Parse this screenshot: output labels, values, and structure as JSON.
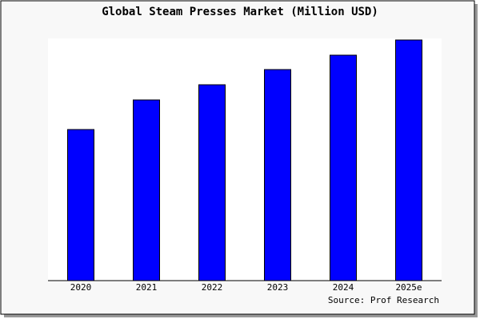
{
  "chart_data": {
    "type": "bar",
    "title": "Global Steam Presses Market (Million USD)",
    "categories": [
      "2020",
      "2021",
      "2022",
      "2023",
      "2024",
      "2025e"
    ],
    "values": [
      189,
      226,
      245,
      264,
      282,
      301
    ],
    "color": "#0000ff",
    "ylim": [
      0,
      303
    ],
    "source": "Source: Prof Research"
  }
}
